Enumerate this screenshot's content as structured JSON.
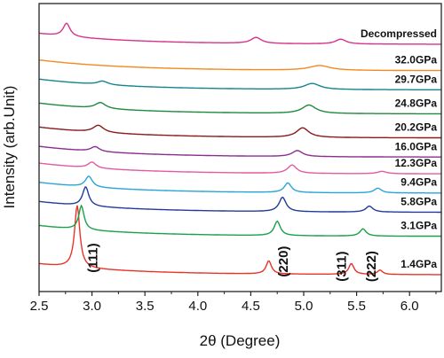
{
  "chart_data": {
    "type": "line",
    "xlabel": "2θ (Degree)",
    "ylabel": "Intensity (arb.Unit)",
    "xlim": [
      2.5,
      6.3
    ],
    "x_ticks": [
      "2.5",
      "3.0",
      "3.5",
      "4.0",
      "4.5",
      "5.0",
      "5.5",
      "6.0"
    ],
    "series": [
      {
        "name": "1.4GPa",
        "color": "#e8332a",
        "baseline": 0.3,
        "peaks": [
          {
            "x": 2.86,
            "h": 2.6,
            "w": 0.03
          },
          {
            "x": 4.67,
            "h": 0.55,
            "w": 0.03
          },
          {
            "x": 5.45,
            "h": 0.45,
            "w": 0.03
          },
          {
            "x": 5.72,
            "h": 0.18,
            "w": 0.03
          }
        ]
      },
      {
        "name": "3.1GPa",
        "color": "#1aa04a",
        "baseline": 1.9,
        "peaks": [
          {
            "x": 2.9,
            "h": 1.0,
            "w": 0.03
          },
          {
            "x": 4.75,
            "h": 0.6,
            "w": 0.035
          },
          {
            "x": 5.56,
            "h": 0.3,
            "w": 0.035
          }
        ]
      },
      {
        "name": "5.8GPa",
        "color": "#223a9c",
        "baseline": 2.9,
        "peaks": [
          {
            "x": 2.94,
            "h": 0.8,
            "w": 0.035
          },
          {
            "x": 4.8,
            "h": 0.6,
            "w": 0.04
          },
          {
            "x": 5.62,
            "h": 0.25,
            "w": 0.04
          }
        ]
      },
      {
        "name": "9.4GPa",
        "color": "#29a4d8",
        "baseline": 3.7,
        "peaks": [
          {
            "x": 2.97,
            "h": 0.45,
            "w": 0.04
          },
          {
            "x": 4.85,
            "h": 0.4,
            "w": 0.04
          },
          {
            "x": 5.7,
            "h": 0.2,
            "w": 0.04
          }
        ]
      },
      {
        "name": "12.3GPa",
        "color": "#e35aa0",
        "baseline": 4.5,
        "peaks": [
          {
            "x": 3.0,
            "h": 0.25,
            "w": 0.045
          },
          {
            "x": 4.89,
            "h": 0.35,
            "w": 0.05
          },
          {
            "x": 5.74,
            "h": 0.1,
            "w": 0.05
          }
        ]
      },
      {
        "name": "16.0GPa",
        "color": "#8b2d90",
        "baseline": 5.2,
        "peaks": [
          {
            "x": 3.03,
            "h": 0.2,
            "w": 0.05
          },
          {
            "x": 4.94,
            "h": 0.25,
            "w": 0.06
          }
        ]
      },
      {
        "name": "20.2GPa",
        "color": "#8b1a1a",
        "baseline": 6.0,
        "peaks": [
          {
            "x": 3.06,
            "h": 0.3,
            "w": 0.06
          },
          {
            "x": 4.99,
            "h": 0.4,
            "w": 0.07
          }
        ]
      },
      {
        "name": "24.8GPa",
        "color": "#1e8a3c",
        "baseline": 7.0,
        "peaks": [
          {
            "x": 3.08,
            "h": 0.25,
            "w": 0.06
          },
          {
            "x": 5.05,
            "h": 0.35,
            "w": 0.08
          }
        ]
      },
      {
        "name": "29.7GPa",
        "color": "#14848e",
        "baseline": 8.0,
        "peaks": [
          {
            "x": 3.1,
            "h": 0.15,
            "w": 0.06
          },
          {
            "x": 5.08,
            "h": 0.25,
            "w": 0.09
          }
        ]
      },
      {
        "name": "32.0GPa",
        "color": "#f5891f",
        "baseline": 8.8,
        "peaks": [
          {
            "x": 5.15,
            "h": 0.2,
            "w": 0.12
          }
        ]
      },
      {
        "name": "Decompressed",
        "color": "#d6338a",
        "baseline": 9.9,
        "peaks": [
          {
            "x": 2.76,
            "h": 0.55,
            "w": 0.04
          },
          {
            "x": 4.55,
            "h": 0.25,
            "w": 0.06
          },
          {
            "x": 5.35,
            "h": 0.2,
            "w": 0.06
          }
        ]
      }
    ],
    "peak_labels": [
      {
        "text": "(111)",
        "x": 3.05,
        "y": 1.0
      },
      {
        "text": "(220)",
        "x": 4.85,
        "y": 0.85
      },
      {
        "text": "(311)",
        "x": 5.4,
        "y": 0.65
      },
      {
        "text": "(222)",
        "x": 5.68,
        "y": 0.65
      }
    ]
  }
}
